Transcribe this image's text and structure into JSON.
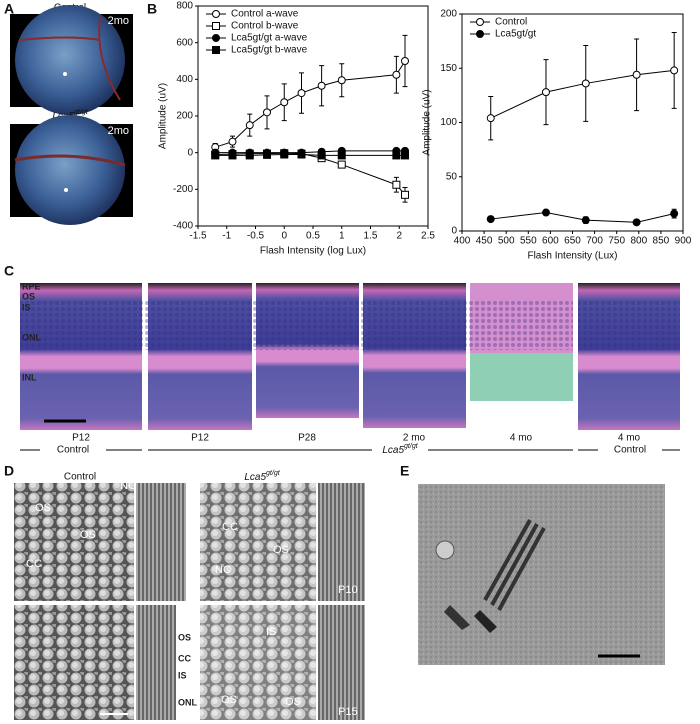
{
  "panels": {
    "a": {
      "label": "A",
      "images": [
        {
          "title": "Control",
          "age": "2mo"
        },
        {
          "gene": "Lca5",
          "genotype": "gt/gt",
          "age": "2mo"
        }
      ]
    },
    "b": {
      "label": "B"
    },
    "c": {
      "label": "C",
      "layers": [
        "RPE",
        "OS",
        "IS",
        "ONL",
        "INL"
      ],
      "ages": [
        "P12",
        "P12",
        "P28",
        "2 mo",
        "4 mo",
        "4 mo"
      ],
      "groups": [
        {
          "title": "Control"
        },
        {
          "gene": "Lca5",
          "genotype": "gt/gt"
        },
        {
          "title": "Control"
        }
      ]
    },
    "d": {
      "label": "D",
      "control": "Control",
      "mutant": {
        "gene": "Lca5",
        "genotype": "gt/gt"
      },
      "annotations": [
        "NC",
        "OS",
        "OS",
        "CC",
        "CC",
        "OS",
        "NC",
        "IS",
        "OS",
        "OS"
      ],
      "ages": [
        "P10",
        "P15"
      ],
      "layers": [
        "OS",
        "CC",
        "IS",
        "ONL"
      ]
    },
    "e": {
      "label": "E"
    }
  },
  "chart_data": [
    {
      "type": "line",
      "x_label": "Flash Intensity (log Lux)",
      "y_label": "Amplitude (uV)",
      "x": [
        -1.2,
        -0.9,
        -0.6,
        -0.3,
        0,
        0.3,
        0.65,
        1,
        1.95,
        2.1
      ],
      "xlim": [
        -1.5,
        2.5
      ],
      "xticks": [
        -1.5,
        -1,
        -0.5,
        0,
        0.5,
        1,
        1.5,
        2,
        2.5
      ],
      "ylim": [
        -400,
        800
      ],
      "yticks": [
        -400,
        -200,
        0,
        200,
        400,
        600,
        800
      ],
      "legend": "upper left",
      "series": [
        {
          "name": "Control a-wave",
          "marker": "open-circle",
          "color": "#000",
          "values": [
            30,
            60,
            150,
            220,
            275,
            325,
            365,
            395,
            425,
            500
          ],
          "errors": [
            20,
            30,
            60,
            90,
            100,
            110,
            110,
            90,
            100,
            140
          ]
        },
        {
          "name": "Control b-wave",
          "marker": "open-square",
          "color": "#000",
          "values": [
            -10,
            -8,
            -5,
            -5,
            -3,
            -5,
            -30,
            -65,
            -175,
            -230
          ],
          "errors": [
            5,
            5,
            5,
            5,
            5,
            5,
            10,
            10,
            40,
            40
          ]
        },
        {
          "name": "Lca5gt/gt a-wave",
          "marker": "filled-circle",
          "color": "#000",
          "values": [
            0,
            0,
            0,
            0,
            0,
            0,
            5,
            10,
            10,
            10
          ]
        },
        {
          "name": "Lca5gt/gt b-wave",
          "marker": "filled-square",
          "color": "#000",
          "values": [
            -15,
            -15,
            -15,
            -12,
            -10,
            -10,
            -15,
            -15,
            -15,
            -15
          ]
        }
      ]
    },
    {
      "type": "line",
      "x_label": "Flash Intensity (Lux)",
      "y_label": "Amplitude (uV)",
      "x": [
        465,
        590,
        680,
        795,
        880
      ],
      "xlim": [
        400,
        900
      ],
      "xticks": [
        400,
        450,
        500,
        550,
        600,
        650,
        700,
        750,
        800,
        850,
        900
      ],
      "ylim": [
        0,
        200
      ],
      "yticks": [
        0,
        50,
        100,
        150,
        200
      ],
      "legend": "upper left",
      "series": [
        {
          "name": "Control",
          "marker": "open-circle",
          "color": "#000",
          "values": [
            104,
            128,
            136,
            144,
            148
          ],
          "errors": [
            20,
            30,
            35,
            33,
            35
          ]
        },
        {
          "name": "Lca5gt/gt",
          "marker": "filled-circle",
          "color": "#000",
          "values": [
            11,
            17,
            10,
            8,
            16
          ],
          "errors": [
            2,
            2,
            3,
            1,
            4
          ]
        }
      ]
    }
  ]
}
